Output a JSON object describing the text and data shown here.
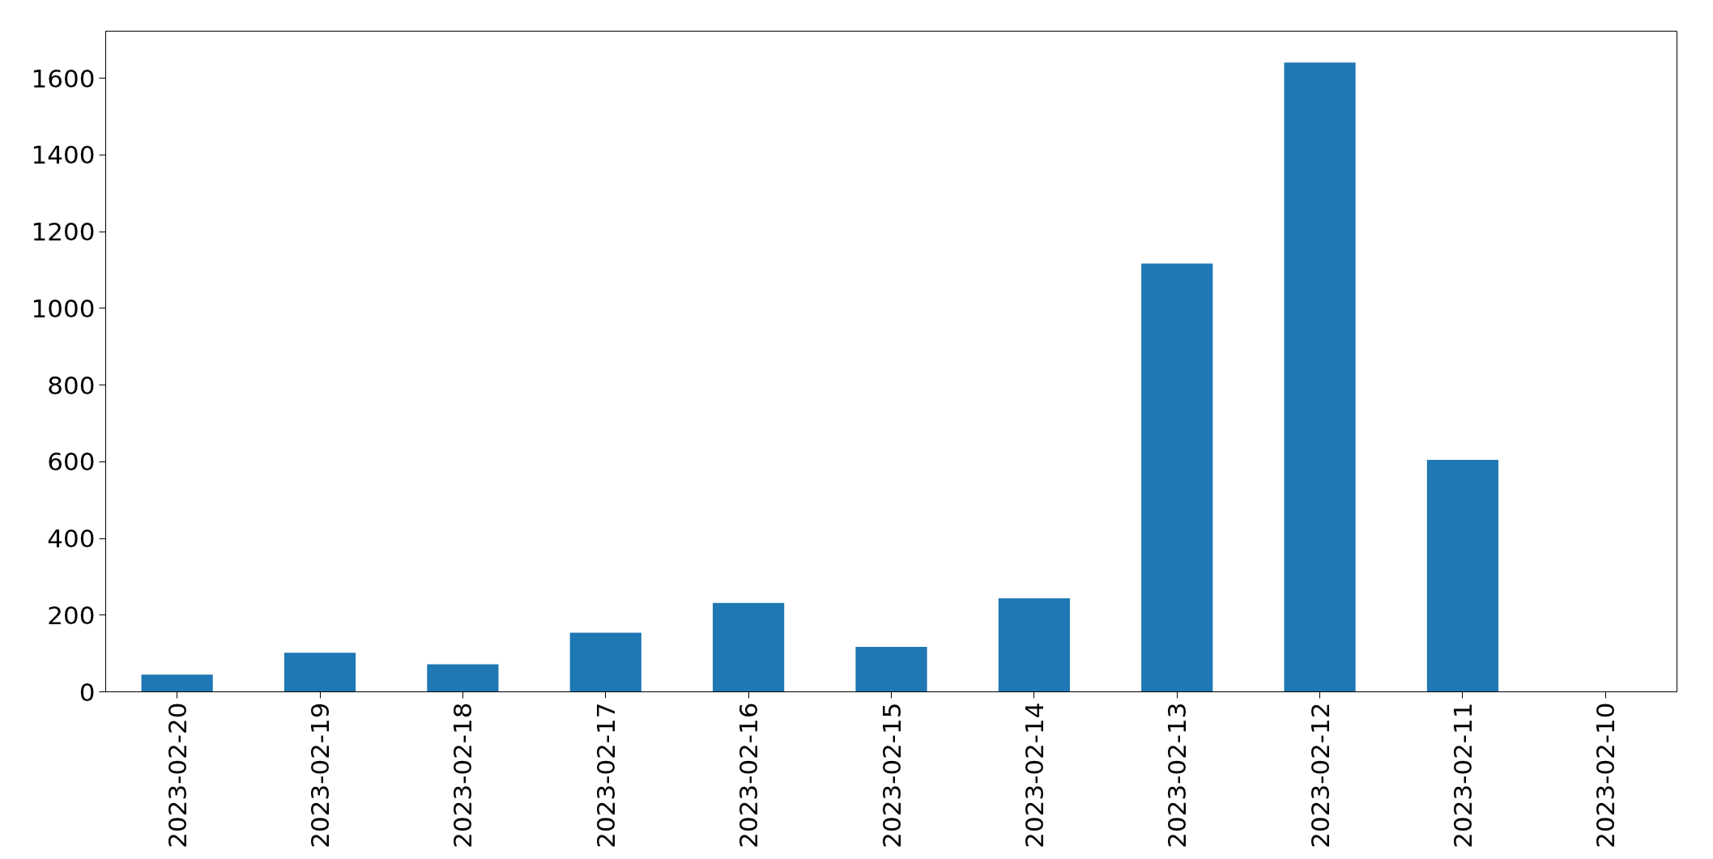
{
  "chart_data": {
    "type": "bar",
    "categories": [
      "2023-02-20",
      "2023-02-19",
      "2023-02-18",
      "2023-02-17",
      "2023-02-16",
      "2023-02-15",
      "2023-02-14",
      "2023-02-13",
      "2023-02-12",
      "2023-02-11",
      "2023-02-10"
    ],
    "values": [
      45,
      102,
      72,
      154,
      232,
      117,
      244,
      1117,
      1641,
      605,
      0
    ],
    "color": "#1f77b4",
    "ylim": [
      0,
      1723
    ],
    "yticks": [
      0,
      200,
      400,
      600,
      800,
      1000,
      1200,
      1400,
      1600
    ],
    "grid": false
  }
}
